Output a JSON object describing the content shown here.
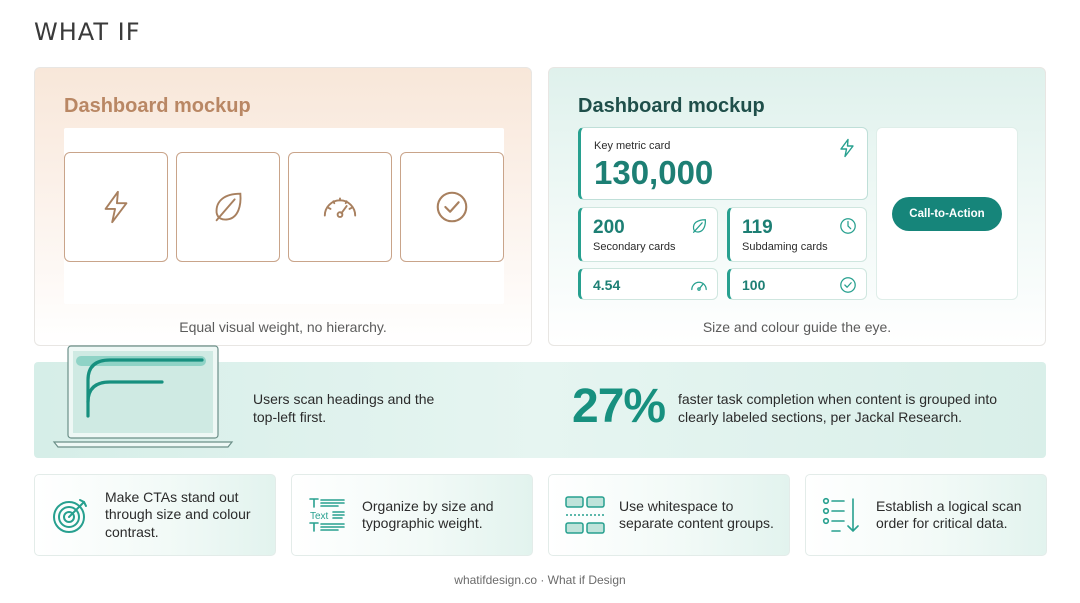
{
  "brand": {
    "logo": "WHAT IF"
  },
  "left_panel": {
    "title": "Dashboard mockup",
    "caption": "Equal visual weight, no hierarchy.",
    "cards": [
      {
        "icon": "lightning-icon"
      },
      {
        "icon": "leaf-icon"
      },
      {
        "icon": "speedometer-icon"
      },
      {
        "icon": "check-circle-icon"
      }
    ]
  },
  "right_panel": {
    "title": "Dashboard mockup",
    "caption": "Size and colour guide the eye.",
    "key_card": {
      "label": "Key metric card",
      "value": "130,000",
      "icon": "lightning-icon"
    },
    "secondary_cards": [
      {
        "value": "200",
        "label": "Secondary cards",
        "icon": "leaf-icon"
      },
      {
        "value": "119",
        "label": "Subdaming cards",
        "icon": "clock-icon"
      }
    ],
    "small_cards": [
      {
        "value": "4.54",
        "icon": "speedometer-icon"
      },
      {
        "value": "100",
        "icon": "check-circle-icon"
      }
    ],
    "cta_label": "Call-to-Action"
  },
  "band": {
    "text1": "Users scan headings and the top-left first.",
    "stat": "27%",
    "text2": "faster task completion when content is grouped into clearly labeled sections, per Jackal Research."
  },
  "tips": [
    {
      "icon": "target-icon",
      "text": "Make CTAs stand out through size and colour contrast."
    },
    {
      "icon": "typography-icon",
      "text": "Organize by size and typographic weight."
    },
    {
      "icon": "layout-grid-icon",
      "text": "Use whitespace to separate content groups."
    },
    {
      "icon": "scan-order-list-icon",
      "text": "Establish a logical scan order for critical data."
    }
  ],
  "footer": "whatifdesign.co · What if Design",
  "colors": {
    "accent": "#16857a",
    "accent_text": "#1d7f74",
    "warm": "#b98764",
    "warm_border": "#c9a48a"
  }
}
